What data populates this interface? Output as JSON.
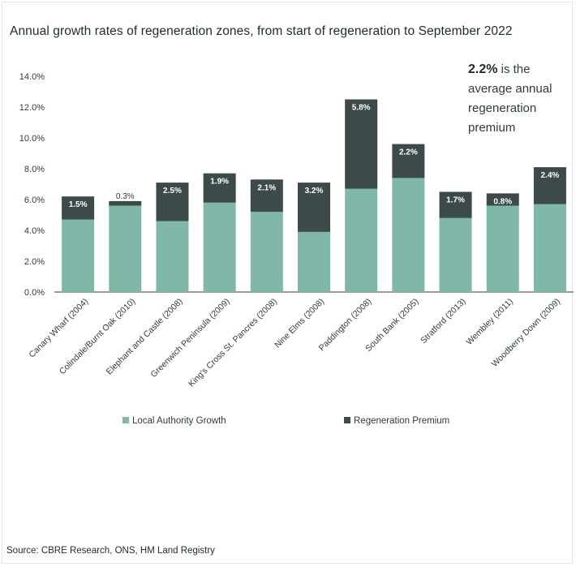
{
  "chart_data": {
    "type": "bar",
    "stacked": true,
    "title": "Annual growth rates of regeneration zones, from start of regeneration to September 2022",
    "categories": [
      "Canary Wharf (2004)",
      "Colindale/Burnt Oak (2010)",
      "Elephant and Castle (2008)",
      "Greenwich Peninsula (2009)",
      "King's Cross St. Pancres (2008)",
      "Nine Elms (2008)",
      "Paddington (2008)",
      "South Bank (2005)",
      "Stratford (2013)",
      "Wembley (2011)",
      "Woodberry Down (2009)"
    ],
    "series": [
      {
        "name": "Local Authority Growth",
        "color": "#7fb8a8",
        "values": [
          4.7,
          5.6,
          4.6,
          5.8,
          5.2,
          3.9,
          6.7,
          7.4,
          4.8,
          5.6,
          5.7
        ]
      },
      {
        "name": "Regeneration Premium",
        "color": "#3d4a4a",
        "values": [
          1.5,
          0.3,
          2.5,
          1.9,
          2.1,
          3.2,
          5.8,
          2.2,
          1.7,
          0.8,
          2.4
        ]
      }
    ],
    "data_labels": [
      "1.5%",
      "0.3%",
      "2.5%",
      "1.9%",
      "2.1%",
      "3.2%",
      "5.8%",
      "2.2%",
      "1.7%",
      "0.8%",
      "2.4%"
    ],
    "y_ticks": [
      "0.0%",
      "2.0%",
      "4.0%",
      "6.0%",
      "8.0%",
      "10.0%",
      "12.0%",
      "14.0%"
    ],
    "ylim": [
      0,
      14
    ],
    "grid": false,
    "legend": "bottom"
  },
  "callout": {
    "highlight": "2.2%",
    "text": " is the average annual regeneration premium"
  },
  "source": "Source: CBRE Research, ONS, HM Land Registry"
}
